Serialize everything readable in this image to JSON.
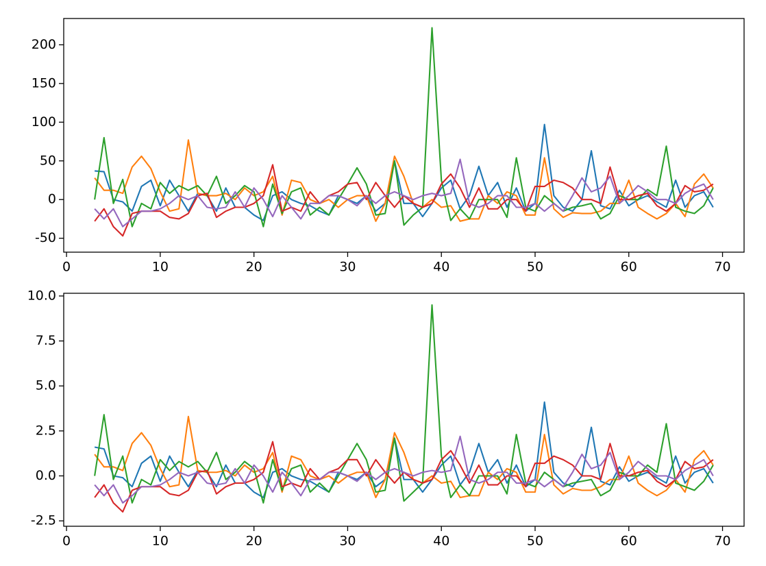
{
  "chart_data": [
    {
      "type": "line",
      "x": [
        3,
        4,
        5,
        6,
        7,
        8,
        9,
        10,
        11,
        12,
        13,
        14,
        15,
        16,
        17,
        18,
        19,
        20,
        21,
        22,
        23,
        24,
        25,
        26,
        27,
        28,
        29,
        30,
        31,
        32,
        33,
        34,
        35,
        36,
        37,
        38,
        39,
        40,
        41,
        42,
        43,
        44,
        45,
        46,
        47,
        48,
        49,
        50,
        51,
        52,
        53,
        54,
        55,
        56,
        57,
        58,
        59,
        60,
        61,
        62,
        63,
        64,
        65,
        66,
        67,
        68,
        69
      ],
      "xlim": [
        -0.3,
        72.3
      ],
      "xticks": [
        0,
        10,
        20,
        30,
        40,
        50,
        60,
        70
      ],
      "ylim": [
        -68,
        234
      ],
      "yticks": [
        -50,
        0,
        50,
        100,
        150,
        200
      ],
      "series": [
        {
          "color": "#1f77b4",
          "values": [
            37,
            36,
            0,
            -3,
            -15,
            17,
            25,
            -8,
            25,
            5,
            -15,
            8,
            5,
            -15,
            15,
            -10,
            -10,
            -20,
            -27,
            5,
            10,
            0,
            -5,
            -8,
            -15,
            -20,
            5,
            0,
            -5,
            5,
            -15,
            -5,
            50,
            -5,
            -5,
            -22,
            -5,
            15,
            25,
            -12,
            5,
            43,
            5,
            22,
            -10,
            15,
            -15,
            -5,
            97,
            5,
            -10,
            -15,
            0,
            63,
            -8,
            -12,
            12,
            -8,
            0,
            5,
            -3,
            -10,
            25,
            -10,
            5,
            10,
            -10
          ]
        },
        {
          "color": "#ff7f0e",
          "values": [
            28,
            12,
            12,
            8,
            42,
            56,
            40,
            10,
            -15,
            -12,
            77,
            8,
            5,
            5,
            8,
            0,
            15,
            5,
            10,
            30,
            -20,
            25,
            22,
            0,
            -5,
            0,
            -10,
            0,
            5,
            5,
            -28,
            -5,
            56,
            30,
            -5,
            -10,
            0,
            -10,
            -8,
            -28,
            -25,
            -25,
            5,
            -5,
            10,
            5,
            -20,
            -20,
            54,
            -12,
            -23,
            -17,
            -18,
            -18,
            -15,
            -5,
            -5,
            25,
            -10,
            -18,
            -25,
            -18,
            -5,
            -22,
            20,
            33,
            15
          ]
        },
        {
          "color": "#2ca02c",
          "values": [
            0,
            80,
            -5,
            26,
            -35,
            -5,
            -12,
            22,
            8,
            18,
            12,
            18,
            5,
            30,
            -5,
            5,
            18,
            10,
            -35,
            20,
            -18,
            10,
            15,
            -20,
            -10,
            -20,
            0,
            20,
            41,
            20,
            -20,
            -18,
            50,
            -33,
            -20,
            -10,
            222,
            25,
            -27,
            -12,
            -25,
            0,
            0,
            0,
            -23,
            54,
            -10,
            -15,
            5,
            -5,
            -15,
            -10,
            -8,
            -5,
            -25,
            -18,
            5,
            0,
            0,
            13,
            5,
            69,
            -10,
            -15,
            -18,
            -8,
            15
          ]
        },
        {
          "color": "#d62728",
          "values": [
            -28,
            -12,
            -35,
            -47,
            -18,
            -15,
            -15,
            -15,
            -23,
            -25,
            -18,
            5,
            8,
            -23,
            -15,
            -10,
            -10,
            -5,
            5,
            45,
            -15,
            -10,
            -15,
            10,
            -5,
            5,
            10,
            20,
            22,
            0,
            22,
            5,
            -10,
            5,
            -5,
            -10,
            -5,
            20,
            33,
            15,
            -10,
            15,
            -12,
            -12,
            0,
            0,
            -15,
            17,
            17,
            25,
            22,
            15,
            0,
            0,
            -5,
            42,
            0,
            0,
            5,
            8,
            -8,
            -15,
            -5,
            18,
            10,
            12,
            20
          ]
        },
        {
          "color": "#9467bd",
          "values": [
            -12,
            -25,
            -12,
            -35,
            -25,
            -15,
            -15,
            -12,
            -5,
            5,
            0,
            5,
            -10,
            -12,
            -10,
            10,
            -10,
            15,
            0,
            -22,
            5,
            -10,
            -25,
            -5,
            -5,
            5,
            5,
            0,
            -8,
            5,
            -5,
            5,
            10,
            5,
            0,
            5,
            8,
            5,
            8,
            52,
            -5,
            -10,
            -5,
            5,
            5,
            -10,
            -10,
            -5,
            -15,
            -5,
            -15,
            5,
            28,
            10,
            15,
            30,
            -5,
            5,
            18,
            10,
            0,
            0,
            -5,
            8,
            15,
            20,
            0
          ]
        }
      ]
    },
    {
      "type": "line",
      "x": [
        3,
        4,
        5,
        6,
        7,
        8,
        9,
        10,
        11,
        12,
        13,
        14,
        15,
        16,
        17,
        18,
        19,
        20,
        21,
        22,
        23,
        24,
        25,
        26,
        27,
        28,
        29,
        30,
        31,
        32,
        33,
        34,
        35,
        36,
        37,
        38,
        39,
        40,
        41,
        42,
        43,
        44,
        45,
        46,
        47,
        48,
        49,
        50,
        51,
        52,
        53,
        54,
        55,
        56,
        57,
        58,
        59,
        60,
        61,
        62,
        63,
        64,
        65,
        66,
        67,
        68,
        69
      ],
      "xlim": [
        -0.3,
        72.3
      ],
      "xticks": [
        0,
        10,
        20,
        30,
        40,
        50,
        60,
        70
      ],
      "ylim": [
        -2.8,
        10.15
      ],
      "yticks": [
        -2.5,
        {
          "value": 0,
          "label": "0.0"
        },
        2.5,
        {
          "value": 5,
          "label": "5.0"
        },
        7.5,
        {
          "value": 10,
          "label": "10.0"
        }
      ],
      "series": [
        {
          "color": "#1f77b4",
          "values": [
            1.6,
            1.5,
            0,
            -0.1,
            -0.6,
            0.7,
            1.1,
            -0.3,
            1.1,
            0.2,
            -0.6,
            0.3,
            0.2,
            -0.6,
            0.6,
            -0.4,
            -0.4,
            -0.9,
            -1.2,
            0.2,
            0.4,
            0,
            -0.2,
            -0.3,
            -0.6,
            -0.9,
            0.2,
            0,
            -0.2,
            0.2,
            -0.6,
            -0.2,
            2.1,
            -0.2,
            -0.2,
            -0.9,
            -0.2,
            0.6,
            1.1,
            -0.5,
            0.2,
            1.8,
            0.2,
            0.9,
            -0.4,
            0.6,
            -0.6,
            -0.2,
            4.1,
            0.2,
            -0.4,
            -0.6,
            0,
            2.7,
            -0.3,
            -0.5,
            0.5,
            -0.3,
            0,
            0.2,
            -0.1,
            -0.4,
            1.1,
            -0.4,
            0.2,
            0.4,
            -0.4
          ]
        },
        {
          "color": "#ff7f0e",
          "values": [
            1.2,
            0.5,
            0.5,
            0.3,
            1.8,
            2.4,
            1.7,
            0.4,
            -0.6,
            -0.5,
            3.3,
            0.3,
            0.2,
            0.2,
            0.3,
            0,
            0.6,
            0.2,
            0.4,
            1.3,
            -0.9,
            1.1,
            0.9,
            0,
            -0.2,
            0,
            -0.4,
            0,
            0.2,
            0.2,
            -1.2,
            -0.2,
            2.4,
            1.3,
            -0.2,
            -0.4,
            0,
            -0.4,
            -0.3,
            -1.2,
            -1.1,
            -1.1,
            0.2,
            -0.2,
            0.4,
            0.2,
            -0.9,
            -0.9,
            2.3,
            -0.5,
            -1.0,
            -0.7,
            -0.8,
            -0.8,
            -0.6,
            -0.2,
            -0.2,
            1.1,
            -0.4,
            -0.8,
            -1.1,
            -0.8,
            -0.2,
            -0.9,
            0.9,
            1.4,
            0.6
          ]
        },
        {
          "color": "#2ca02c",
          "values": [
            0,
            3.4,
            -0.2,
            1.1,
            -1.5,
            -0.2,
            -0.5,
            0.9,
            0.3,
            0.8,
            0.5,
            0.8,
            0.2,
            1.3,
            -0.2,
            0.2,
            0.8,
            0.4,
            -1.5,
            0.9,
            -0.8,
            0.4,
            0.6,
            -0.9,
            -0.4,
            -0.9,
            0,
            0.9,
            1.8,
            0.9,
            -0.9,
            -0.8,
            2.1,
            -1.4,
            -0.9,
            -0.4,
            9.5,
            1.1,
            -1.2,
            -0.5,
            -1.1,
            0,
            0,
            0,
            -1.0,
            2.3,
            -0.4,
            -0.6,
            0.2,
            -0.2,
            -0.6,
            -0.4,
            -0.3,
            -0.2,
            -1.1,
            -0.8,
            0.2,
            0,
            0,
            0.6,
            0.2,
            2.9,
            -0.4,
            -0.6,
            -0.8,
            -0.3,
            0.6
          ]
        },
        {
          "color": "#d62728",
          "values": [
            -1.2,
            -0.5,
            -1.5,
            -2.0,
            -0.8,
            -0.6,
            -0.6,
            -0.6,
            -1.0,
            -1.1,
            -0.8,
            0.2,
            0.3,
            -1.0,
            -0.6,
            -0.4,
            -0.4,
            -0.2,
            0.2,
            1.9,
            -0.6,
            -0.4,
            -0.6,
            0.4,
            -0.2,
            0.2,
            0.4,
            0.9,
            0.9,
            0,
            0.9,
            0.2,
            -0.4,
            0.2,
            -0.2,
            -0.4,
            -0.2,
            0.9,
            1.4,
            0.6,
            -0.4,
            0.6,
            -0.5,
            -0.5,
            0,
            0,
            -0.6,
            0.7,
            0.7,
            1.1,
            0.9,
            0.6,
            0,
            0,
            -0.2,
            1.8,
            0,
            0,
            0.2,
            0.3,
            -0.3,
            -0.6,
            -0.2,
            0.8,
            0.4,
            0.5,
            0.9
          ]
        },
        {
          "color": "#9467bd",
          "values": [
            -0.5,
            -1.1,
            -0.5,
            -1.5,
            -1.1,
            -0.6,
            -0.6,
            -0.5,
            -0.2,
            0.2,
            0,
            0.2,
            -0.4,
            -0.5,
            -0.4,
            0.4,
            -0.4,
            0.6,
            0,
            -0.9,
            0.2,
            -0.4,
            -1.1,
            -0.2,
            -0.2,
            0.2,
            0.2,
            0,
            -0.3,
            0.2,
            -0.2,
            0.2,
            0.4,
            0.2,
            0,
            0.2,
            0.3,
            0.2,
            0.3,
            2.2,
            -0.2,
            -0.4,
            -0.2,
            0.2,
            0.2,
            -0.4,
            -0.4,
            -0.2,
            -0.6,
            -0.2,
            -0.6,
            0.2,
            1.2,
            0.4,
            0.6,
            1.3,
            -0.2,
            0.2,
            0.8,
            0.4,
            0,
            0,
            -0.2,
            0.3,
            0.6,
            0.9,
            0
          ]
        }
      ]
    }
  ]
}
